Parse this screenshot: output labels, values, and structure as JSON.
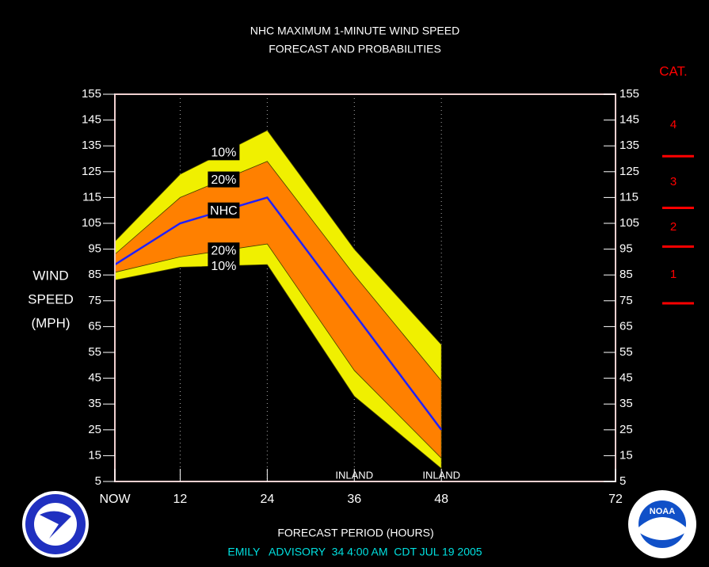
{
  "chart_data": {
    "type": "band",
    "title": "NHC MAXIMUM 1-MINUTE WIND SPEED",
    "subtitle": "FORECAST AND PROBABILITIES",
    "ylabel": [
      "WIND",
      "SPEED",
      "(MPH)"
    ],
    "xlabel": "FORECAST PERIOD (HOURS)",
    "footer": "EMILY   ADVISORY  34 4:00 AM  CDT JUL 19 2005",
    "x": [
      3,
      12,
      24,
      36,
      48
    ],
    "xlim": [
      3,
      72
    ],
    "xticks": [
      {
        "value": 3,
        "label": "NOW"
      },
      12,
      24,
      36,
      48,
      72
    ],
    "ylim": [
      5,
      155
    ],
    "yticks": [
      5,
      15,
      25,
      35,
      45,
      55,
      65,
      75,
      85,
      95,
      105,
      115,
      125,
      135,
      145,
      155
    ],
    "series": [
      {
        "name": "10%",
        "color": "#f0f000",
        "values": [
          98,
          124,
          141,
          95,
          58
        ]
      },
      {
        "name": "20%",
        "color": "#ff8000",
        "values": [
          93,
          115,
          129,
          85,
          44
        ]
      },
      {
        "name": "NHC",
        "color": "#2020ff",
        "values": [
          89,
          105,
          115,
          70,
          25
        ]
      },
      {
        "name": "20%",
        "color": "#ff8000",
        "values": [
          86,
          92,
          97,
          48,
          14
        ]
      },
      {
        "name": "10%",
        "color": "#f0f000",
        "values": [
          83,
          88,
          89,
          38,
          10
        ]
      }
    ],
    "annotations": [
      {
        "x": 36,
        "text": "INLAND"
      },
      {
        "x": 48,
        "text": "INLAND"
      }
    ],
    "category_scale": {
      "title": "CAT.",
      "color": "#ff0000",
      "boundaries": [
        74,
        96,
        111,
        131
      ],
      "labels": [
        "1",
        "2",
        "3",
        "4"
      ]
    },
    "logos": {
      "noaa": "NOAA"
    }
  }
}
